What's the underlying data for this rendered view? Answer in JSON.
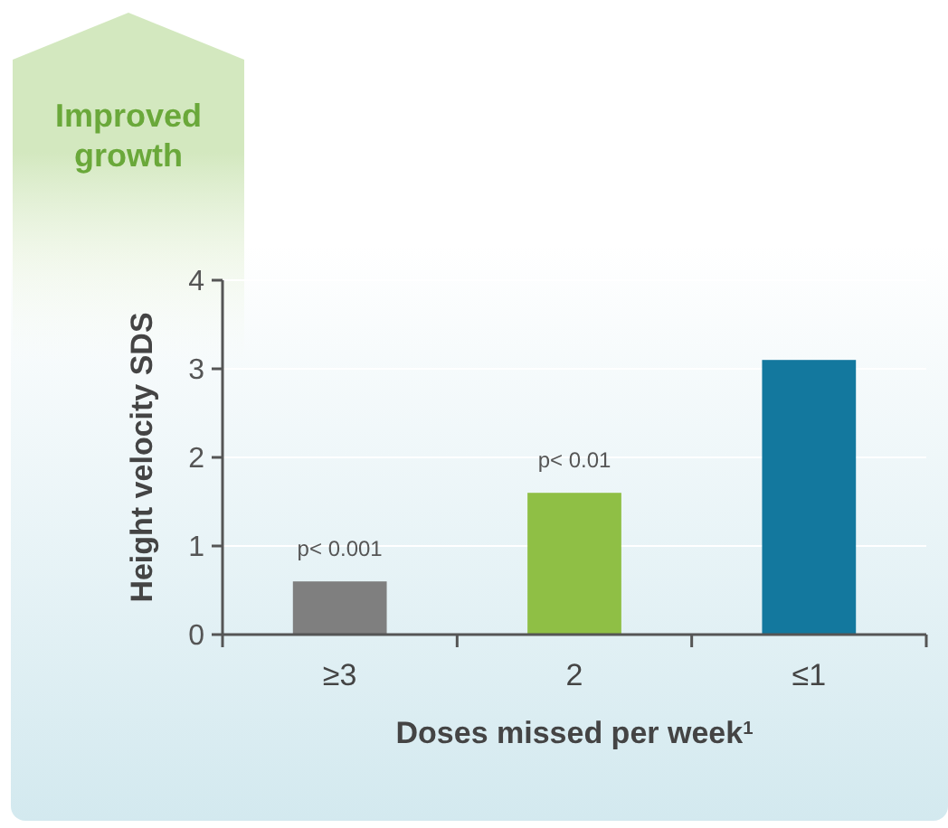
{
  "chart_data": {
    "type": "bar",
    "ylabel": "Height velocity SDS",
    "xlabel": "Doses missed per week$^{1}$",
    "categories": [
      "≥3",
      "2",
      "≤1"
    ],
    "values": [
      0.6,
      1.6,
      3.1
    ],
    "colors": [
      "#7f7f7f",
      "#8fbf45",
      "#13789e"
    ],
    "ylim": [
      0,
      4
    ],
    "yticks": [
      0,
      1,
      2,
      3,
      4
    ],
    "grid": "y",
    "annotations": [
      {
        "text": "p< 0.001",
        "x": "≥3",
        "y": 0.6
      },
      {
        "text": "p< 0.01",
        "x": "2",
        "y": 1.6
      },
      "Improved growth"
    ]
  }
}
